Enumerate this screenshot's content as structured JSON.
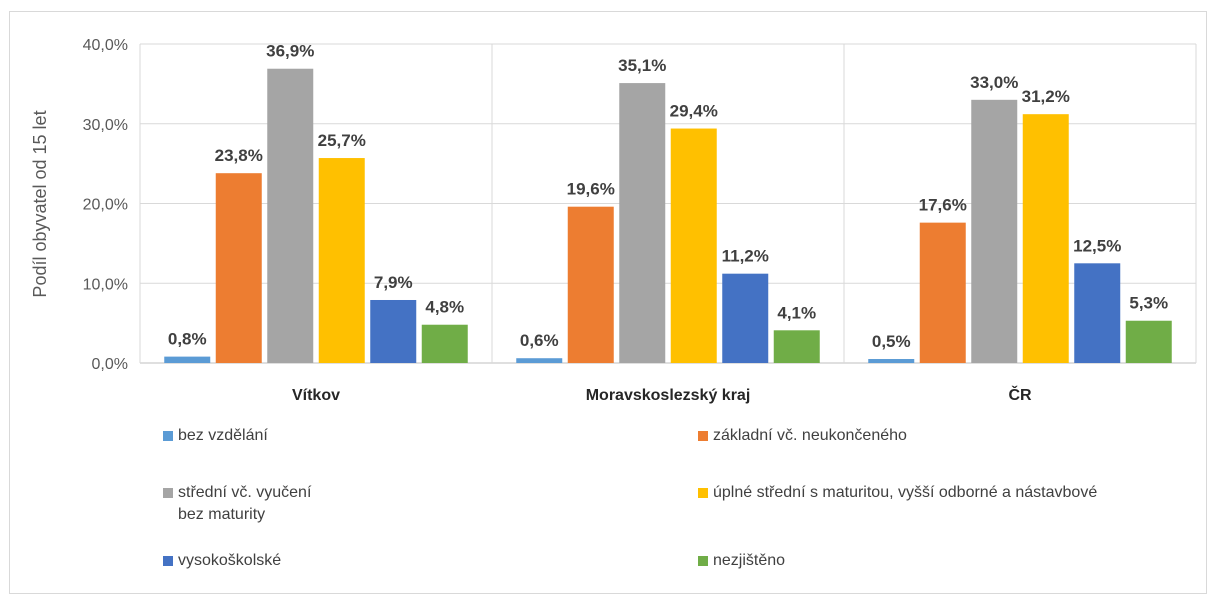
{
  "chart_data": {
    "type": "bar",
    "ylabel": "Podíl obyvatel od 15 let",
    "ylim": [
      0,
      40
    ],
    "yticks": [
      "0,0%",
      "10,0%",
      "20,0%",
      "30,0%",
      "40,0%"
    ],
    "ytick_values": [
      0,
      10,
      20,
      30,
      40
    ],
    "grid": true,
    "legend_position": "bottom",
    "categories": [
      "Vítkov",
      "Moravskoslezský kraj",
      "ČR"
    ],
    "series": [
      {
        "name": "bez vzdělání",
        "color": "#5b9bd5",
        "values": [
          0.8,
          0.6,
          0.5
        ],
        "labels": [
          "0,8%",
          "0,6%",
          "0,5%"
        ]
      },
      {
        "name": "základní vč. neukončeného",
        "color": "#ed7d31",
        "values": [
          23.8,
          19.6,
          17.6
        ],
        "labels": [
          "23,8%",
          "19,6%",
          "17,6%"
        ]
      },
      {
        "name": "střední vč. vyučení\n bez maturity",
        "color": "#a5a5a5",
        "values": [
          36.9,
          35.1,
          33.0
        ],
        "labels": [
          "36,9%",
          "35,1%",
          "33,0%"
        ]
      },
      {
        "name": "úplné střední s maturitou,  vyšší odborné a nástavbové",
        "color": "#ffc000",
        "values": [
          25.7,
          29.4,
          31.2
        ],
        "labels": [
          "25,7%",
          "29,4%",
          "31,2%"
        ]
      },
      {
        "name": "vysokoškolské",
        "color": "#4472c4",
        "values": [
          7.9,
          11.2,
          12.5
        ],
        "labels": [
          "7,9%",
          "11,2%",
          "12,5%"
        ]
      },
      {
        "name": "nezjištěno",
        "color": "#70ad47",
        "values": [
          4.8,
          4.1,
          5.3
        ],
        "labels": [
          "4,8%",
          "4,1%",
          "5,3%"
        ]
      }
    ]
  }
}
